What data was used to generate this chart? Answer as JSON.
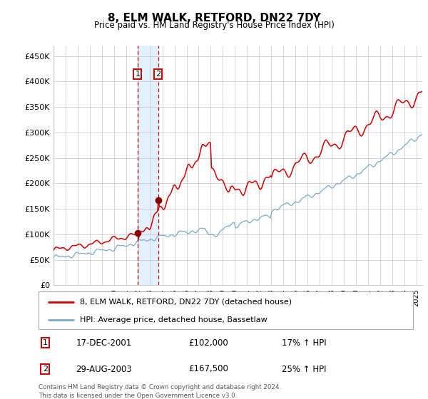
{
  "title": "8, ELM WALK, RETFORD, DN22 7DY",
  "subtitle": "Price paid vs. HM Land Registry's House Price Index (HPI)",
  "ylabel_ticks": [
    "£0",
    "£50K",
    "£100K",
    "£150K",
    "£200K",
    "£250K",
    "£300K",
    "£350K",
    "£400K",
    "£450K"
  ],
  "ytick_vals": [
    0,
    50000,
    100000,
    150000,
    200000,
    250000,
    300000,
    350000,
    400000,
    450000
  ],
  "xlim_start": 1995.0,
  "xlim_end": 2025.5,
  "ylim": [
    0,
    470000
  ],
  "line1_color": "#cc0000",
  "line2_color": "#7aaac8",
  "marker_color": "#880000",
  "purchase1_x": 2001.958,
  "purchase1_y": 102000,
  "purchase2_x": 2003.66,
  "purchase2_y": 167500,
  "vline1_x": 2001.958,
  "vline2_x": 2003.66,
  "shade_color": "#ddeeff",
  "grid_color": "#cccccc",
  "legend_line1": "8, ELM WALK, RETFORD, DN22 7DY (detached house)",
  "legend_line2": "HPI: Average price, detached house, Bassetlaw",
  "footnote": "Contains HM Land Registry data © Crown copyright and database right 2024.\nThis data is licensed under the Open Government Licence v3.0.",
  "table_rows": [
    {
      "num": "1",
      "date": "17-DEC-2001",
      "price": "£102,000",
      "hpi": "17% ↑ HPI"
    },
    {
      "num": "2",
      "date": "29-AUG-2003",
      "price": "£167,500",
      "hpi": "25% ↑ HPI"
    }
  ]
}
